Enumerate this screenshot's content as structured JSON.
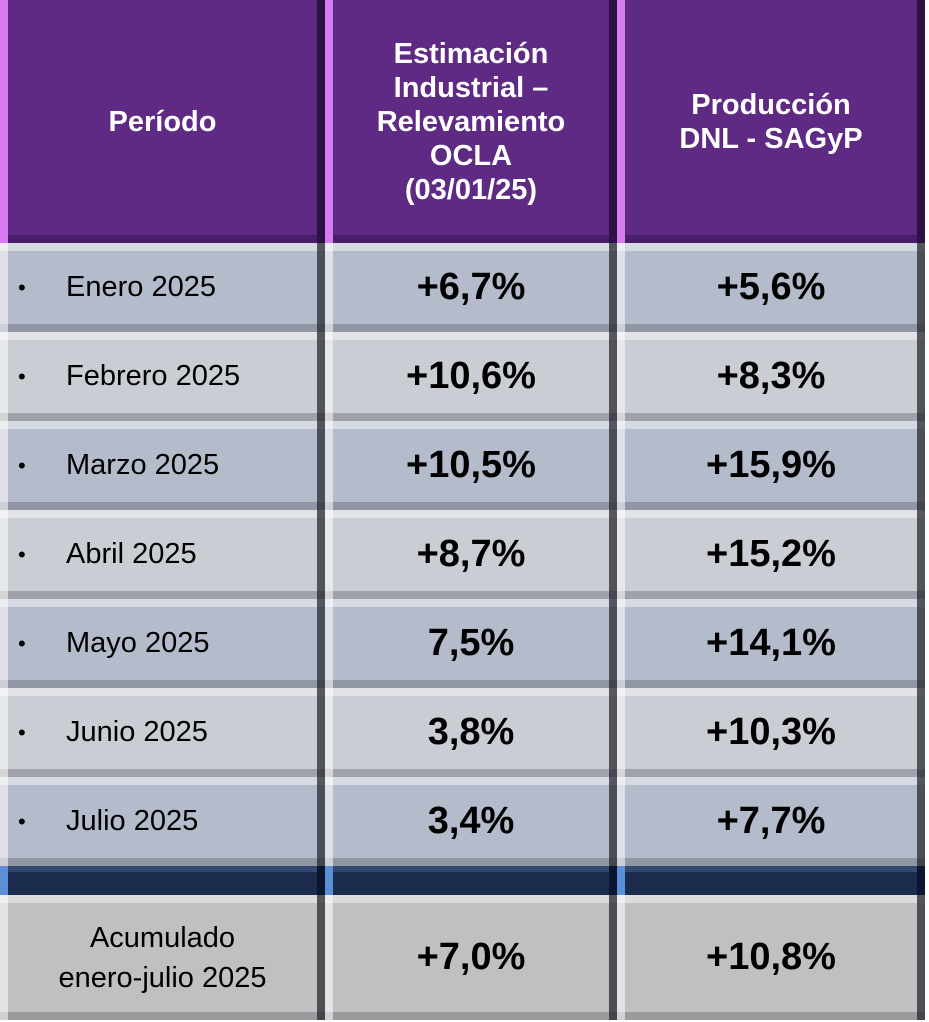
{
  "colors": {
    "header": "#5e2a84",
    "row_odd": "#b4bccb",
    "row_even": "#cacdd4",
    "separator": "#1c2c4e",
    "total": "#c0c0c0"
  },
  "chart_data": {
    "type": "table",
    "columns": [
      "Período",
      "Estimación Industrial – Relevamiento OCLA (03/01/25)",
      "Producción DNL - SAGyP"
    ],
    "header_lines": {
      "col0": [
        "Período"
      ],
      "col1": [
        "Estimación",
        "Industrial –",
        "Relevamiento",
        "OCLA",
        "(03/01/25)"
      ],
      "col2": [
        "Producción",
        "DNL - SAGyP"
      ]
    },
    "bullet": "•",
    "rows": [
      {
        "period": "Enero 2025",
        "ocla": "+6,7%",
        "dnl": "+5,6%"
      },
      {
        "period": "Febrero 2025",
        "ocla": "+10,6%",
        "dnl": "+8,3%"
      },
      {
        "period": "Marzo 2025",
        "ocla": "+10,5%",
        "dnl": "+15,9%"
      },
      {
        "period": "Abril 2025",
        "ocla": "+8,7%",
        "dnl": "+15,2%"
      },
      {
        "period": "Mayo 2025",
        "ocla": "7,5%",
        "dnl": "+14,1%"
      },
      {
        "period": "Junio 2025",
        "ocla": "3,8%",
        "dnl": "+10,3%"
      },
      {
        "period": "Julio 2025",
        "ocla": "3,4%",
        "dnl": "+7,7%"
      }
    ],
    "total": {
      "label_lines": [
        "Acumulado",
        "enero-julio 2025"
      ],
      "ocla": "+7,0%",
      "dnl": "+10,8%"
    }
  }
}
